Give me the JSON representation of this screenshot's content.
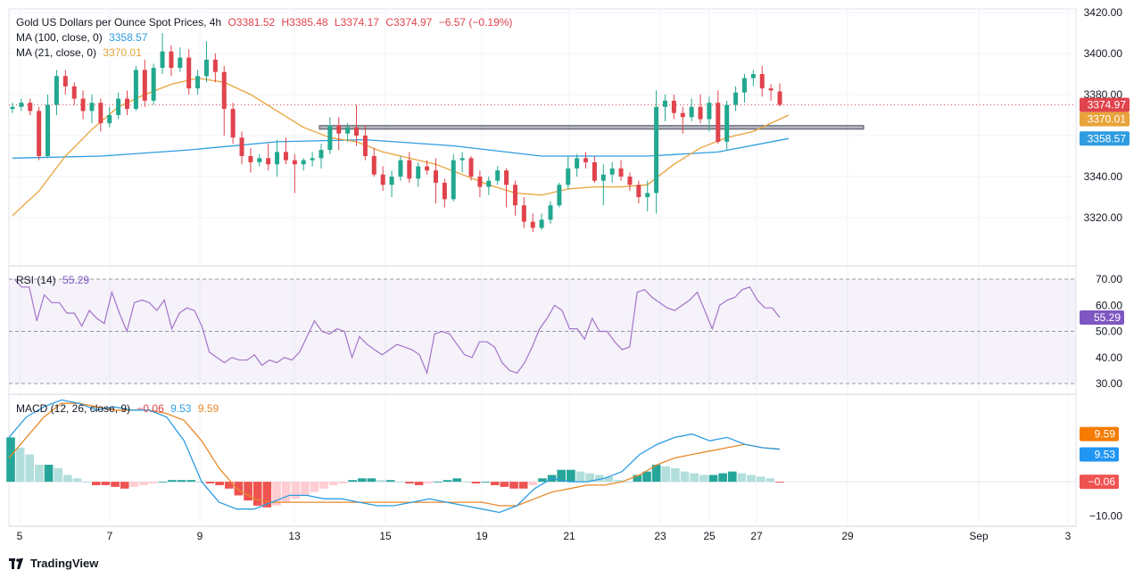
{
  "header": {
    "title": "Gold US Dollars per Ounce Spot Prices, 4h",
    "open": "O3381.52",
    "high": "H3385.48",
    "low": "L3374.17",
    "close": "C3374.97",
    "change": "−6.57 (−0.19%)",
    "ma100_label": "MA (100, close, 0)",
    "ma100_value": "3358.57",
    "ma21_label": "MA (21, close, 0)",
    "ma21_value": "3370.01",
    "rsi_label": "RSI (14)",
    "rsi_value": "55.29",
    "macd_label": "MACD (12, 26, close, 9)",
    "macd_hist": "−0.06",
    "macd_line": "9.53",
    "macd_signal": "9.59"
  },
  "footer": {
    "brand": "TradingView"
  },
  "colors": {
    "up": "#22a88f",
    "down": "#e0434c",
    "ma100": "#2e9ce0",
    "ma21": "#e8a33a",
    "rsi": "#a374c9",
    "hist_up_strong": "#26a69a",
    "hist_up_weak": "#b2dfdb",
    "hist_down_strong": "#ef5350",
    "hist_down_weak": "#ffcdd2"
  },
  "chart_data": [
    {
      "type": "candlestick",
      "title": "Gold US Dollars per Ounce Spot Prices, 4h",
      "x_ticks": [
        "5",
        "7",
        "9",
        "13",
        "15",
        "19",
        "21",
        "23",
        "25",
        "27",
        "29",
        "Sep",
        "3"
      ],
      "y_ticks": [
        "3320.00",
        "3340.00",
        "3360.00",
        "3380.00",
        "3400.00",
        "3420.00"
      ],
      "ylim": [
        3300,
        3420
      ],
      "price_labels": {
        "last": "3374.97",
        "ma21": "3370.01",
        "ma100": "3358.57"
      },
      "support_line": 3364,
      "candles": [
        [
          3373,
          3376,
          3371,
          3374
        ],
        [
          3374,
          3378,
          3372,
          3376
        ],
        [
          3376,
          3378,
          3370,
          3372
        ],
        [
          3372,
          3374,
          3348,
          3350
        ],
        [
          3350,
          3380,
          3349,
          3375
        ],
        [
          3375,
          3392,
          3370,
          3389
        ],
        [
          3389,
          3392,
          3380,
          3384
        ],
        [
          3384,
          3386,
          3375,
          3378
        ],
        [
          3378,
          3382,
          3368,
          3372
        ],
        [
          3372,
          3380,
          3366,
          3376
        ],
        [
          3376,
          3378,
          3362,
          3366
        ],
        [
          3366,
          3374,
          3364,
          3370
        ],
        [
          3370,
          3381,
          3368,
          3378
        ],
        [
          3378,
          3382,
          3370,
          3373
        ],
        [
          3373,
          3394,
          3372,
          3392
        ],
        [
          3392,
          3397,
          3374,
          3377
        ],
        [
          3377,
          3395,
          3375,
          3393
        ],
        [
          3393,
          3410,
          3390,
          3401
        ],
        [
          3401,
          3404,
          3389,
          3393
        ],
        [
          3393,
          3403,
          3391,
          3398
        ],
        [
          3398,
          3402,
          3380,
          3383
        ],
        [
          3383,
          3392,
          3380,
          3389
        ],
        [
          3389,
          3406,
          3386,
          3397
        ],
        [
          3397,
          3400,
          3386,
          3391
        ],
        [
          3391,
          3394,
          3360,
          3373
        ],
        [
          3373,
          3376,
          3356,
          3359
        ],
        [
          3359,
          3362,
          3346,
          3350
        ],
        [
          3350,
          3354,
          3342,
          3347
        ],
        [
          3347,
          3351,
          3345,
          3349
        ],
        [
          3349,
          3356,
          3343,
          3346
        ],
        [
          3346,
          3358,
          3340,
          3352
        ],
        [
          3352,
          3359,
          3346,
          3348
        ],
        [
          3348,
          3351,
          3332,
          3346
        ],
        [
          3346,
          3349,
          3343,
          3348
        ],
        [
          3348,
          3352,
          3345,
          3349
        ],
        [
          3349,
          3356,
          3344,
          3353
        ],
        [
          3353,
          3369,
          3351,
          3365
        ],
        [
          3365,
          3369,
          3353,
          3361
        ],
        [
          3361,
          3366,
          3357,
          3364
        ],
        [
          3364,
          3375,
          3355,
          3360
        ],
        [
          3360,
          3365,
          3348,
          3350
        ],
        [
          3350,
          3354,
          3340,
          3341
        ],
        [
          3341,
          3345,
          3333,
          3336
        ],
        [
          3336,
          3343,
          3330,
          3340
        ],
        [
          3340,
          3350,
          3338,
          3348
        ],
        [
          3348,
          3352,
          3337,
          3339
        ],
        [
          3339,
          3347,
          3335,
          3345
        ],
        [
          3345,
          3348,
          3341,
          3343
        ],
        [
          3343,
          3349,
          3327,
          3337
        ],
        [
          3337,
          3339,
          3325,
          3329
        ],
        [
          3329,
          3351,
          3328,
          3348
        ],
        [
          3348,
          3352,
          3342,
          3349
        ],
        [
          3349,
          3350,
          3338,
          3340
        ],
        [
          3340,
          3343,
          3330,
          3335
        ],
        [
          3335,
          3340,
          3331,
          3338
        ],
        [
          3338,
          3345,
          3336,
          3343
        ],
        [
          3343,
          3344,
          3325,
          3336
        ],
        [
          3336,
          3338,
          3321,
          3326
        ],
        [
          3326,
          3330,
          3315,
          3318
        ],
        [
          3318,
          3322,
          3313,
          3315
        ],
        [
          3315,
          3322,
          3314,
          3319
        ],
        [
          3319,
          3328,
          3317,
          3326
        ],
        [
          3326,
          3337,
          3325,
          3336
        ],
        [
          3336,
          3350,
          3334,
          3344
        ],
        [
          3344,
          3351,
          3340,
          3349
        ],
        [
          3349,
          3352,
          3344,
          3347
        ],
        [
          3347,
          3350,
          3337,
          3338
        ],
        [
          3338,
          3346,
          3326,
          3341
        ],
        [
          3341,
          3347,
          3337,
          3344
        ],
        [
          3344,
          3348,
          3338,
          3340
        ],
        [
          3340,
          3342,
          3333,
          3336
        ],
        [
          3336,
          3338,
          3327,
          3330
        ],
        [
          3330,
          3338,
          3323,
          3332
        ],
        [
          3332,
          3382,
          3322,
          3374
        ],
        [
          3374,
          3380,
          3367,
          3377
        ],
        [
          3377,
          3380,
          3368,
          3371
        ],
        [
          3371,
          3374,
          3361,
          3369
        ],
        [
          3369,
          3378,
          3367,
          3374
        ],
        [
          3374,
          3380,
          3366,
          3368
        ],
        [
          3368,
          3379,
          3362,
          3376
        ],
        [
          3376,
          3382,
          3356,
          3357
        ],
        [
          3357,
          3377,
          3353,
          3375
        ],
        [
          3375,
          3384,
          3372,
          3381
        ],
        [
          3381,
          3390,
          3376,
          3388
        ],
        [
          3388,
          3392,
          3384,
          3390
        ],
        [
          3390,
          3394,
          3379,
          3383
        ],
        [
          3383,
          3385,
          3377,
          3382
        ],
        [
          3381.52,
          3385.48,
          3374.17,
          3374.97
        ]
      ],
      "ma100": [
        [
          0,
          3349
        ],
        [
          10,
          3350
        ],
        [
          20,
          3353
        ],
        [
          30,
          3357
        ],
        [
          40,
          3358
        ],
        [
          50,
          3355
        ],
        [
          60,
          3350
        ],
        [
          72,
          3350
        ],
        [
          80,
          3352
        ],
        [
          88,
          3358.57
        ]
      ],
      "ma21": [
        [
          0,
          3321
        ],
        [
          3,
          3333
        ],
        [
          6,
          3350
        ],
        [
          9,
          3363
        ],
        [
          12,
          3374
        ],
        [
          15,
          3380
        ],
        [
          18,
          3385
        ],
        [
          21,
          3388
        ],
        [
          24,
          3386
        ],
        [
          27,
          3380
        ],
        [
          30,
          3372
        ],
        [
          33,
          3364
        ],
        [
          36,
          3359
        ],
        [
          39,
          3357
        ],
        [
          42,
          3352
        ],
        [
          45,
          3349
        ],
        [
          48,
          3346
        ],
        [
          51,
          3341
        ],
        [
          54,
          3336
        ],
        [
          57,
          3332
        ],
        [
          60,
          3331
        ],
        [
          63,
          3334
        ],
        [
          66,
          3335
        ],
        [
          69,
          3335
        ],
        [
          72,
          3336
        ],
        [
          75,
          3346
        ],
        [
          78,
          3354
        ],
        [
          81,
          3359
        ],
        [
          84,
          3362
        ],
        [
          88,
          3370.01
        ]
      ]
    },
    {
      "type": "line",
      "title": "RSI (14)",
      "y_ticks": [
        "30.00",
        "40.00",
        "50.00",
        "60.00",
        "70.00"
      ],
      "ylim": [
        30,
        70
      ],
      "value_label": "55.29",
      "series": [
        {
          "values": [
            70,
            67,
            67,
            54,
            64,
            61,
            61,
            57,
            57,
            52,
            58,
            55,
            53,
            65,
            57,
            50,
            61,
            62,
            61,
            58,
            62,
            51,
            57,
            59,
            58,
            52,
            42,
            40,
            38,
            40,
            39,
            39,
            41,
            37,
            39,
            38,
            40,
            39,
            42,
            48,
            54,
            50,
            49,
            51,
            50,
            40,
            48,
            45,
            43,
            41,
            43,
            45,
            44,
            43,
            41,
            34,
            49,
            50,
            49,
            45,
            41,
            40,
            46,
            46,
            44,
            38,
            35,
            34,
            38,
            44,
            51,
            55,
            60,
            58,
            51,
            51,
            47,
            55,
            50,
            50,
            46,
            43,
            44,
            65,
            66,
            63,
            61,
            59,
            58,
            60,
            62,
            65,
            58,
            51,
            60,
            62,
            63,
            66,
            67,
            62,
            59,
            59,
            55.29
          ]
        }
      ]
    },
    {
      "type": "bar",
      "title": "MACD (12, 26, close, 9)",
      "y_ticks": [
        "−10.00"
      ],
      "ylim": [
        -12,
        22
      ],
      "value_labels": {
        "signal": "9.59",
        "macd": "9.53",
        "histogram": "−0.06"
      },
      "histogram": [
        13,
        10,
        8,
        5,
        5,
        4,
        2,
        1,
        0,
        -1,
        -1,
        -1.5,
        -2,
        -1.5,
        -1,
        -0.5,
        0,
        0.5,
        0.5,
        0.5,
        0,
        -0.5,
        -1,
        -2,
        -4,
        -5.5,
        -7,
        -7.5,
        -7,
        -6,
        -5,
        -4,
        -3,
        -2,
        -1,
        -0.5,
        0.5,
        1,
        1,
        0.5,
        0.5,
        0,
        -0.5,
        -1,
        -0.5,
        0,
        0.5,
        1,
        0,
        -0.5,
        0,
        -1,
        -1.5,
        -2,
        -2,
        -1,
        1,
        2,
        3.5,
        3.5,
        3,
        2.5,
        2,
        1.5,
        0.5,
        0,
        2,
        3,
        5,
        4.5,
        4,
        3,
        2.5,
        2,
        2,
        2.5,
        3,
        2.5,
        2,
        1.5,
        1,
        -0.06
      ],
      "macd_line": [
        13,
        19,
        22,
        24,
        23,
        21,
        22,
        21,
        21,
        19,
        12,
        0,
        -6,
        -8,
        -8,
        -6,
        -4,
        -4,
        -5,
        -5,
        -6,
        -7,
        -7,
        -6,
        -5,
        -6,
        -7,
        -8,
        -9,
        -7,
        -2,
        1,
        0,
        0,
        1,
        3,
        8,
        11,
        13,
        14,
        12,
        13,
        11,
        10,
        9.53
      ],
      "signal_line": [
        7,
        13,
        19,
        23,
        23,
        22,
        21,
        21,
        21,
        20,
        18,
        12,
        4,
        -2,
        -5,
        -6,
        -6,
        -6,
        -6,
        -6,
        -6,
        -6,
        -6,
        -6,
        -6,
        -6,
        -6,
        -6,
        -7,
        -7,
        -5,
        -3,
        -2,
        -1,
        -1,
        0,
        2,
        5,
        7,
        8,
        9,
        10,
        11,
        10,
        9.59
      ]
    }
  ]
}
